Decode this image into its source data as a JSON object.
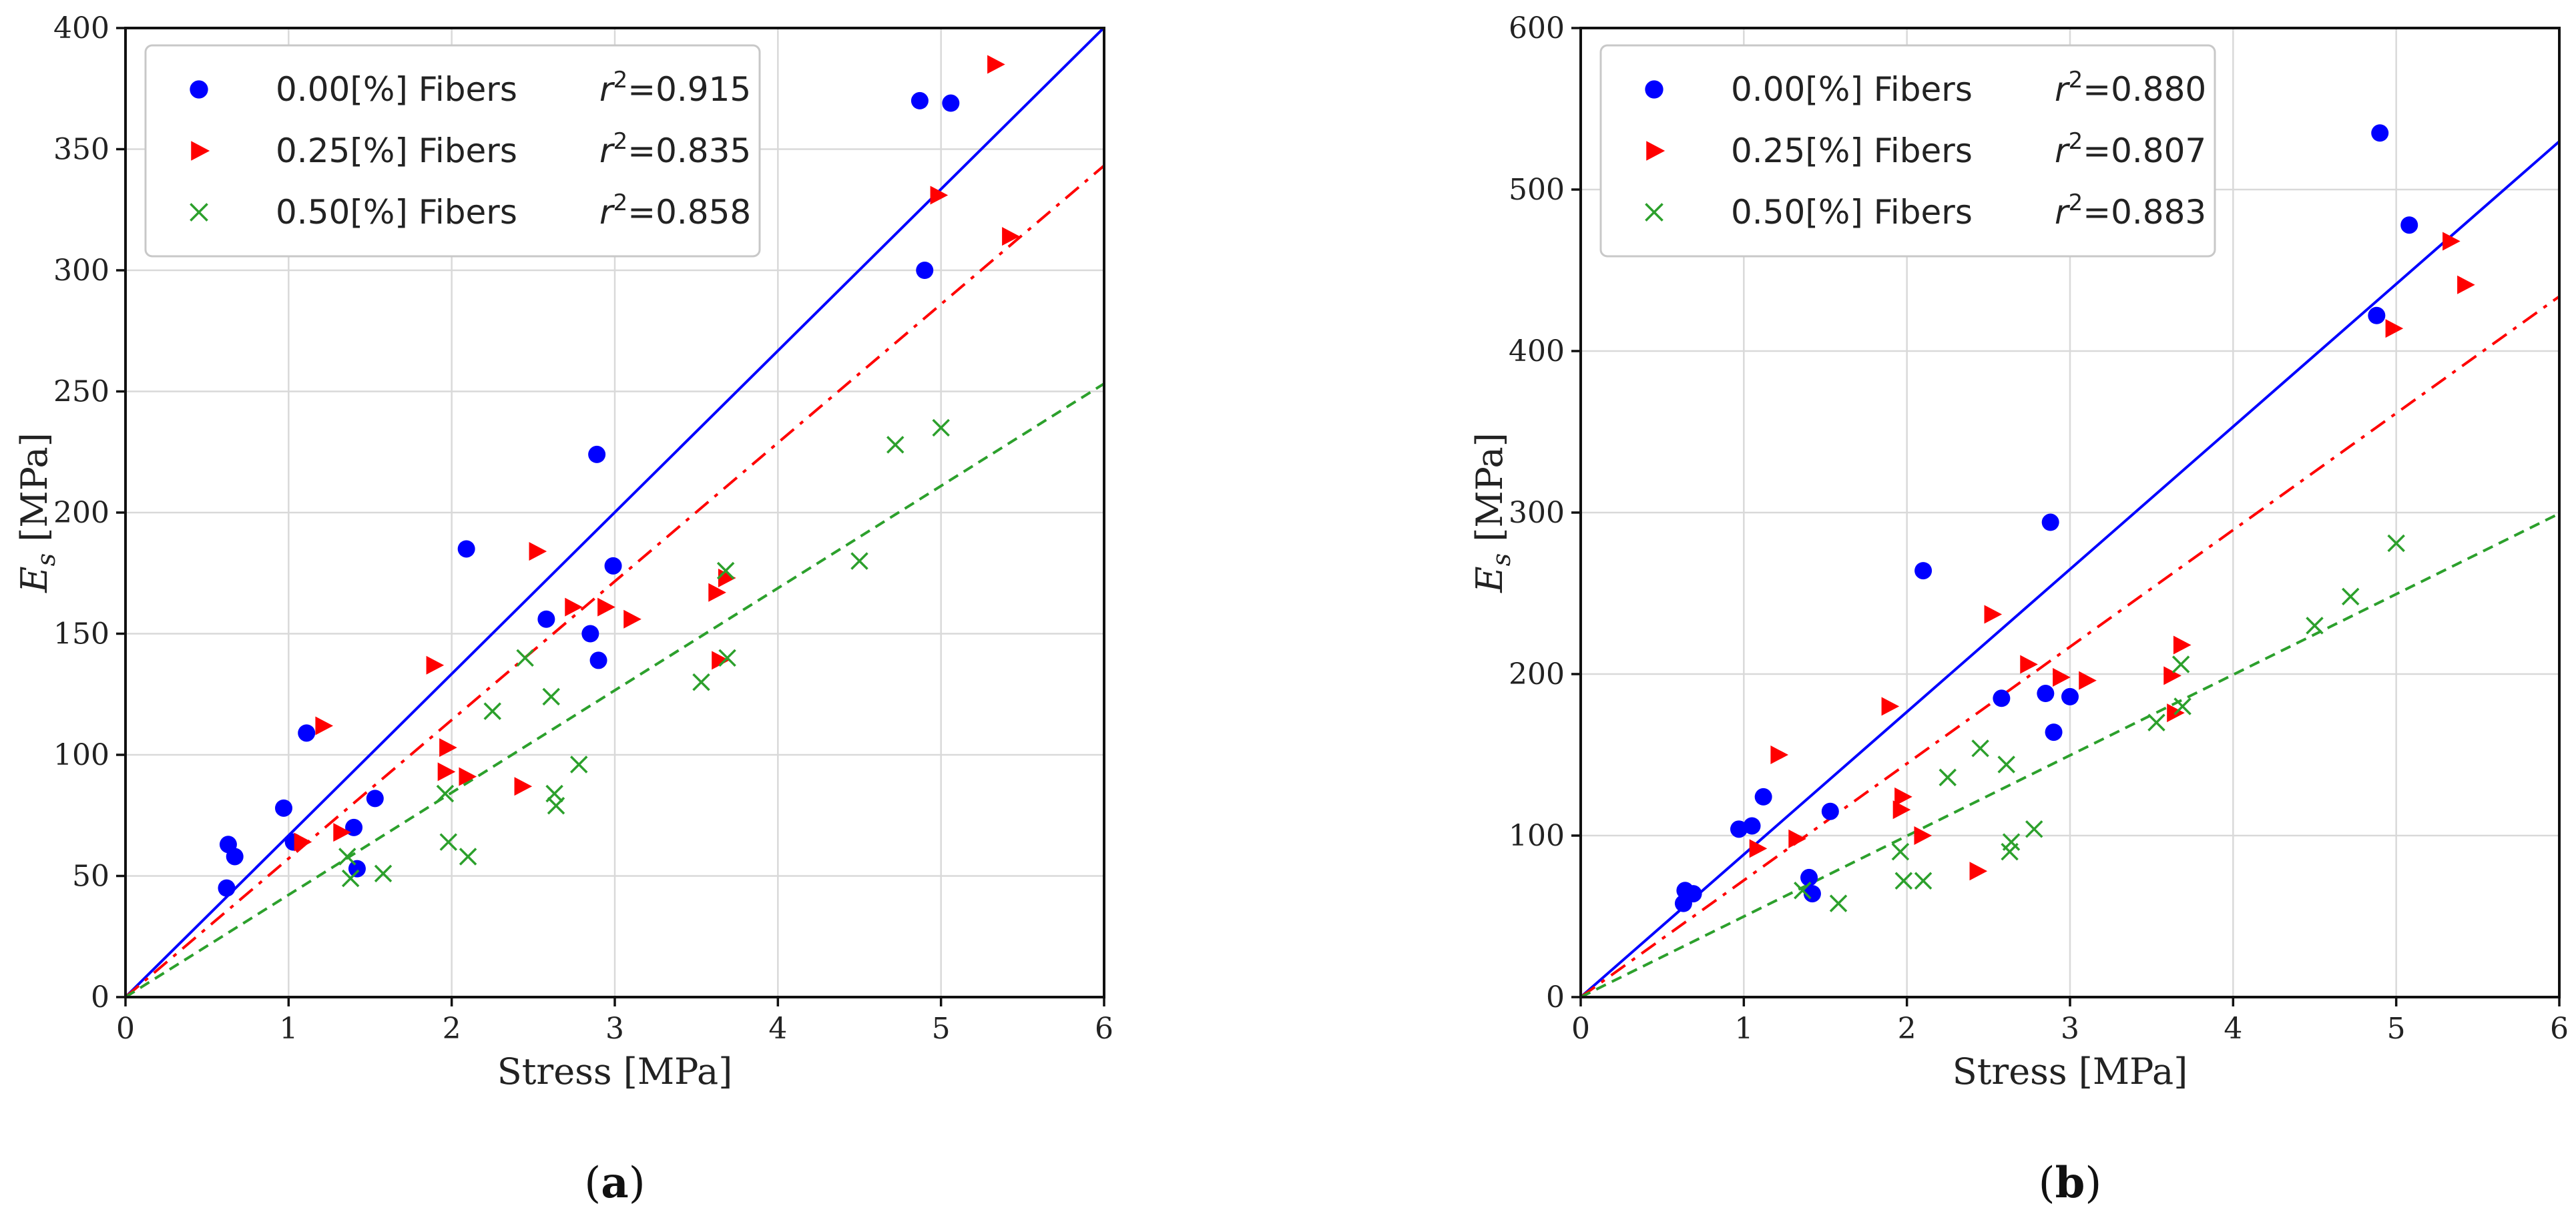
{
  "chart_data": [
    {
      "type": "scatter",
      "panel_label": "(a)",
      "xlabel": "Stress [MPa]",
      "ylabel": "E_s [MPa]",
      "xlim": [
        0,
        6
      ],
      "ylim": [
        0,
        400
      ],
      "xticks": [
        0,
        1,
        2,
        3,
        4,
        5,
        6
      ],
      "yticks": [
        0,
        50,
        100,
        150,
        200,
        250,
        300,
        350,
        400
      ],
      "grid": true,
      "legend_position": "top-left",
      "series": [
        {
          "name": "0.00[%] Fibers",
          "r2": "0.915",
          "marker": "circle",
          "color": "#0000ff",
          "line_style": "solid",
          "slope": 66.7,
          "points": [
            [
              0.62,
              45
            ],
            [
              0.63,
              63
            ],
            [
              0.67,
              58
            ],
            [
              0.97,
              78
            ],
            [
              1.03,
              64
            ],
            [
              1.11,
              109
            ],
            [
              1.4,
              70
            ],
            [
              1.42,
              53
            ],
            [
              1.53,
              82
            ],
            [
              2.09,
              185
            ],
            [
              2.58,
              156
            ],
            [
              2.85,
              150
            ],
            [
              2.89,
              224
            ],
            [
              2.9,
              139
            ],
            [
              2.99,
              178
            ],
            [
              4.87,
              370
            ],
            [
              4.9,
              300
            ],
            [
              5.06,
              369
            ]
          ]
        },
        {
          "name": "0.25[%] Fibers",
          "r2": "0.835",
          "marker": "triangle-right",
          "color": "#ff0000",
          "line_style": "dashdot",
          "slope": 57.2,
          "points": [
            [
              1.08,
              64
            ],
            [
              1.21,
              112
            ],
            [
              1.32,
              68
            ],
            [
              1.89,
              137
            ],
            [
              1.96,
              93
            ],
            [
              1.97,
              103
            ],
            [
              2.09,
              91
            ],
            [
              2.43,
              87
            ],
            [
              2.52,
              184
            ],
            [
              2.74,
              161
            ],
            [
              2.94,
              161
            ],
            [
              3.1,
              156
            ],
            [
              3.62,
              167
            ],
            [
              3.64,
              139
            ],
            [
              3.68,
              173
            ],
            [
              4.98,
              331
            ],
            [
              5.33,
              385
            ],
            [
              5.42,
              314
            ]
          ]
        },
        {
          "name": "0.50[%] Fibers",
          "r2": "0.858",
          "marker": "x",
          "color": "#2ca02c",
          "line_style": "dashed",
          "slope": 42.2,
          "points": [
            [
              1.36,
              58
            ],
            [
              1.38,
              49
            ],
            [
              1.58,
              51
            ],
            [
              1.96,
              84
            ],
            [
              1.98,
              64
            ],
            [
              2.1,
              58
            ],
            [
              2.25,
              118
            ],
            [
              2.45,
              140
            ],
            [
              2.61,
              124
            ],
            [
              2.63,
              84
            ],
            [
              2.64,
              79
            ],
            [
              2.78,
              96
            ],
            [
              3.53,
              130
            ],
            [
              3.68,
              176
            ],
            [
              3.69,
              140
            ],
            [
              4.5,
              180
            ],
            [
              4.72,
              228
            ],
            [
              5,
              235
            ]
          ]
        }
      ]
    },
    {
      "type": "scatter",
      "panel_label": "(b)",
      "xlabel": "Stress [MPa]",
      "ylabel": "E_s [MPa]",
      "xlim": [
        0,
        6
      ],
      "ylim": [
        0,
        600
      ],
      "xticks": [
        0,
        1,
        2,
        3,
        4,
        5,
        6
      ],
      "yticks": [
        0,
        100,
        200,
        300,
        400,
        500,
        600
      ],
      "grid": true,
      "legend_position": "top-left",
      "series": [
        {
          "name": "0.00[%] Fibers",
          "r2": "0.880",
          "marker": "circle",
          "color": "#0000ff",
          "line_style": "solid",
          "slope": 88.3,
          "points": [
            [
              0.63,
              58
            ],
            [
              0.64,
              66
            ],
            [
              0.69,
              64
            ],
            [
              0.97,
              104
            ],
            [
              1.05,
              106
            ],
            [
              1.12,
              124
            ],
            [
              1.4,
              74
            ],
            [
              1.42,
              64
            ],
            [
              1.53,
              115
            ],
            [
              2.1,
              264
            ],
            [
              2.58,
              185
            ],
            [
              2.85,
              188
            ],
            [
              2.88,
              294
            ],
            [
              2.9,
              164
            ],
            [
              3,
              186
            ],
            [
              4.88,
              422
            ],
            [
              4.9,
              535
            ],
            [
              5.08,
              478
            ]
          ]
        },
        {
          "name": "0.25[%] Fibers",
          "r2": "0.807",
          "marker": "triangle-right",
          "color": "#ff0000",
          "line_style": "dashdot",
          "slope": 72.3,
          "points": [
            [
              1.08,
              92
            ],
            [
              1.21,
              150
            ],
            [
              1.32,
              98
            ],
            [
              1.89,
              180
            ],
            [
              1.96,
              116
            ],
            [
              1.97,
              124
            ],
            [
              2.09,
              100
            ],
            [
              2.43,
              78
            ],
            [
              2.52,
              237
            ],
            [
              2.74,
              206
            ],
            [
              2.94,
              198
            ],
            [
              3.1,
              196
            ],
            [
              3.62,
              199
            ],
            [
              3.64,
              176
            ],
            [
              3.68,
              218
            ],
            [
              4.98,
              414
            ],
            [
              5.33,
              468
            ],
            [
              5.42,
              441
            ]
          ]
        },
        {
          "name": "0.50[%] Fibers",
          "r2": "0.883",
          "marker": "x",
          "color": "#2ca02c",
          "line_style": "dashed",
          "slope": 49.9,
          "points": [
            [
              1.36,
              66
            ],
            [
              1.58,
              58
            ],
            [
              1.96,
              90
            ],
            [
              1.98,
              72
            ],
            [
              2.1,
              72
            ],
            [
              2.25,
              136
            ],
            [
              2.45,
              154
            ],
            [
              2.61,
              144
            ],
            [
              2.63,
              90
            ],
            [
              2.64,
              96
            ],
            [
              2.78,
              104
            ],
            [
              3.53,
              170
            ],
            [
              3.68,
              206
            ],
            [
              3.69,
              180
            ],
            [
              4.5,
              230
            ],
            [
              4.72,
              248
            ],
            [
              5,
              281
            ]
          ]
        }
      ]
    }
  ]
}
